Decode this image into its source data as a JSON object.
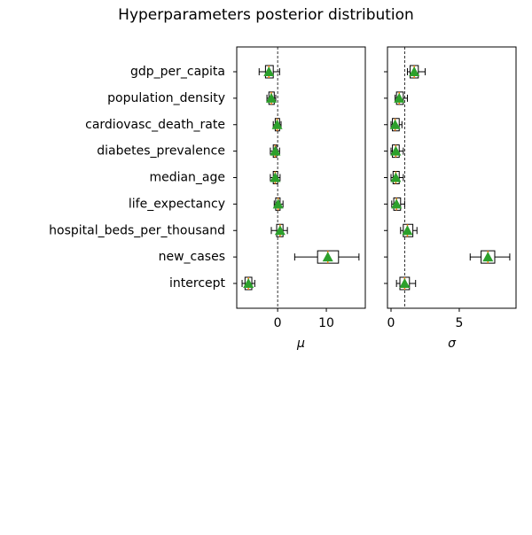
{
  "title": "Hyperparameters posterior distribution",
  "chart_data": [
    {
      "type": "boxplot",
      "xlabel": "μ",
      "categories": [
        "gdp_per_capita",
        "population_density",
        "cardiovasc_death_rate",
        "diabetes_prevalence",
        "median_age",
        "life_expectancy",
        "hospital_beds_per_thousand",
        "new_cases",
        "intercept"
      ],
      "boxes": [
        {
          "whislo": -3.8,
          "q1": -2.5,
          "med": -1.8,
          "q3": -0.9,
          "whishi": 0.4,
          "mean": -1.8
        },
        {
          "whislo": -2.2,
          "q1": -1.8,
          "med": -1.3,
          "q3": -0.7,
          "whishi": -0.4,
          "mean": -1.3
        },
        {
          "whislo": -0.9,
          "q1": -0.5,
          "med": -0.1,
          "q3": 0.4,
          "whishi": 0.7,
          "mean": -0.1
        },
        {
          "whislo": -1.5,
          "q1": -0.9,
          "med": -0.5,
          "q3": -0.2,
          "whishi": 0.4,
          "mean": -0.5
        },
        {
          "whislo": -1.5,
          "q1": -0.9,
          "med": -0.5,
          "q3": 0,
          "whishi": 0.5,
          "mean": -0.5
        },
        {
          "whislo": -0.7,
          "q1": -0.4,
          "med": 0.1,
          "q3": 0.5,
          "whishi": 1.1,
          "mean": 0.1
        },
        {
          "whislo": -1.3,
          "q1": -0.2,
          "med": 0.5,
          "q3": 1.1,
          "whishi": 2.0,
          "mean": 0.5
        },
        {
          "whislo": 3.5,
          "q1": 8.2,
          "med": 10.3,
          "q3": 12.5,
          "whishi": 16.7,
          "mean": 10.3
        },
        {
          "whislo": -7.3,
          "q1": -6.7,
          "med": -6.0,
          "q3": -5.3,
          "whishi": -4.7,
          "mean": -6.0
        }
      ],
      "xlim": [
        -8.4,
        18
      ],
      "xticks": [
        0,
        10
      ],
      "refline": 0,
      "median_color": "#ff7f0e",
      "mean_color": "#2ca02c"
    },
    {
      "type": "boxplot",
      "xlabel": "σ",
      "boxes": [
        {
          "whislo": 1.2,
          "q1": 1.4,
          "med": 1.7,
          "q3": 2.0,
          "whishi": 2.5,
          "mean": 1.7
        },
        {
          "whislo": 0.3,
          "q1": 0.4,
          "med": 0.6,
          "q3": 0.9,
          "whishi": 1.2,
          "mean": 0.6
        },
        {
          "whislo": 0,
          "q1": 0.1,
          "med": 0.3,
          "q3": 0.6,
          "whishi": 0.8,
          "mean": 0.3
        },
        {
          "whislo": 0,
          "q1": 0.1,
          "med": 0.35,
          "q3": 0.6,
          "whishi": 0.9,
          "mean": 0.35
        },
        {
          "whislo": 0,
          "q1": 0.15,
          "med": 0.35,
          "q3": 0.6,
          "whishi": 0.9,
          "mean": 0.35
        },
        {
          "whislo": 0.05,
          "q1": 0.2,
          "med": 0.4,
          "q3": 0.7,
          "whishi": 1.0,
          "mean": 0.4
        },
        {
          "whislo": 0.7,
          "q1": 0.9,
          "med": 1.2,
          "q3": 1.6,
          "whishi": 1.9,
          "mean": 1.2
        },
        {
          "whislo": 5.8,
          "q1": 6.6,
          "med": 7.1,
          "q3": 7.6,
          "whishi": 8.7,
          "mean": 7.1
        },
        {
          "whislo": 0.4,
          "q1": 0.65,
          "med": 1.0,
          "q3": 1.35,
          "whishi": 1.8,
          "mean": 1.0
        }
      ],
      "xlim": [
        -0.26,
        9.16
      ],
      "xticks": [
        0,
        5
      ],
      "refline": 1,
      "median_color": "#ff7f0e",
      "mean_color": "#2ca02c"
    }
  ]
}
